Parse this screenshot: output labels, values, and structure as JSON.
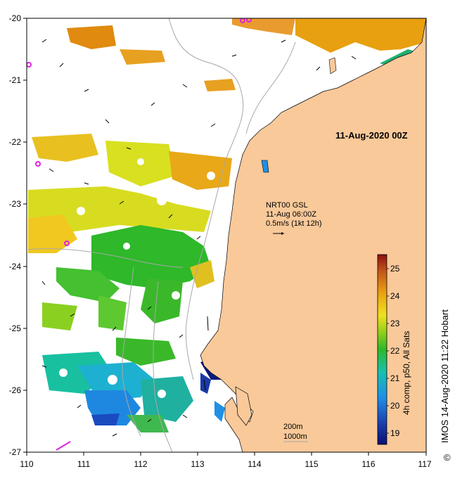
{
  "map": {
    "date_label": "11-Aug-2020 00Z",
    "x_ticks": [
      "110",
      "111",
      "112",
      "113",
      "114",
      "115",
      "116",
      "117"
    ],
    "y_ticks": [
      "-20",
      "-21",
      "-22",
      "-23",
      "-24",
      "-25",
      "-26",
      "-27"
    ],
    "current_legend": {
      "line1": "NRT00 GSL",
      "line2": "11-Aug 06:00Z",
      "line3": "0.5m/s (1kt 12h)"
    },
    "depth_legend": {
      "line1": "200m",
      "line2": "1000m"
    },
    "colorbar": {
      "ticks": [
        "25",
        "24",
        "23",
        "22",
        "21",
        "20",
        "19"
      ],
      "label": "4h comp, p50, All Sats"
    },
    "credit": "IMOS 14-Aug-2020 11:22 Hobart",
    "copyright_symbol": "©",
    "colors": {
      "land": "#f9c99a",
      "sst_19": "#0a1a7a",
      "sst_20": "#1e88e0",
      "sst_21": "#1ec28a",
      "sst_22": "#3ab82a",
      "sst_23": "#e6e020",
      "sst_24": "#e8a010",
      "sst_25": "#c05010"
    }
  }
}
